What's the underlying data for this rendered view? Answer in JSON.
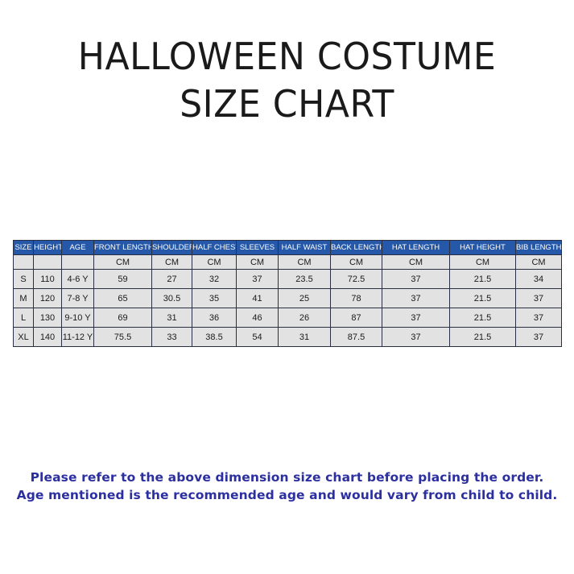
{
  "title": {
    "line1": "HALLOWEEN COSTUME",
    "line2": "SIZE CHART"
  },
  "table": {
    "headers": [
      "SIZE",
      "HEIGHT",
      "AGE",
      "FRONT LENGTH",
      "SHOULDER",
      "HALF CHEST",
      "SLEEVES",
      "HALF WAIST",
      "BACK LENGTH",
      "HAT LENGTH",
      "HAT HEIGHT",
      "BIB LENGTH"
    ],
    "units": [
      "",
      "",
      "",
      "CM",
      "CM",
      "CM",
      "CM",
      "CM",
      "CM",
      "CM",
      "CM",
      "CM"
    ],
    "rows": [
      [
        "S",
        "110",
        "4-6 Y",
        "59",
        "27",
        "32",
        "37",
        "23.5",
        "72.5",
        "37",
        "21.5",
        "34"
      ],
      [
        "M",
        "120",
        "7-8 Y",
        "65",
        "30.5",
        "35",
        "41",
        "25",
        "78",
        "37",
        "21.5",
        "37"
      ],
      [
        "L",
        "130",
        "9-10 Y",
        "69",
        "31",
        "36",
        "46",
        "26",
        "87",
        "37",
        "21.5",
        "37"
      ],
      [
        "XL",
        "140",
        "11-12 Y",
        "75.5",
        "33",
        "38.5",
        "54",
        "31",
        "87.5",
        "37",
        "21.5",
        "37"
      ]
    ]
  },
  "notes": {
    "line1": "Please refer to the above dimension size chart before placing the order.",
    "line2": "Age mentioned is the recommended age and would vary from child to child."
  },
  "colors": {
    "header_bg": "#2558a8",
    "note_text": "#2b2fa0",
    "cell_bg": "#e2e2e2"
  }
}
